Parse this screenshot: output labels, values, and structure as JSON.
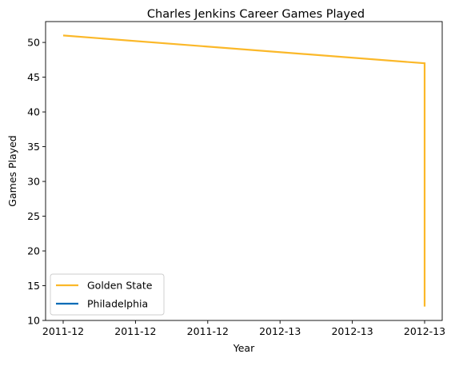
{
  "chart_data": {
    "type": "line",
    "title": "Charles Jenkins  Career Games Played",
    "xlabel": "Year",
    "ylabel": "Games Played",
    "x_tick_labels": [
      "2011-12",
      "2011-12",
      "2011-12",
      "2012-13",
      "2012-13",
      "2012-13"
    ],
    "x_range": [
      0,
      1
    ],
    "ylim": [
      10,
      53
    ],
    "y_ticks": [
      10,
      15,
      20,
      25,
      30,
      35,
      40,
      45,
      50
    ],
    "grid": false,
    "legend_position": "lower-left",
    "series": [
      {
        "name": "Golden State",
        "color": "#fbb829",
        "x": [
          0,
          1,
          1
        ],
        "y": [
          51,
          47,
          12
        ]
      },
      {
        "name": "Philadelphia",
        "color": "#006bb6",
        "x": [
          1
        ],
        "y": [
          12
        ]
      }
    ]
  }
}
